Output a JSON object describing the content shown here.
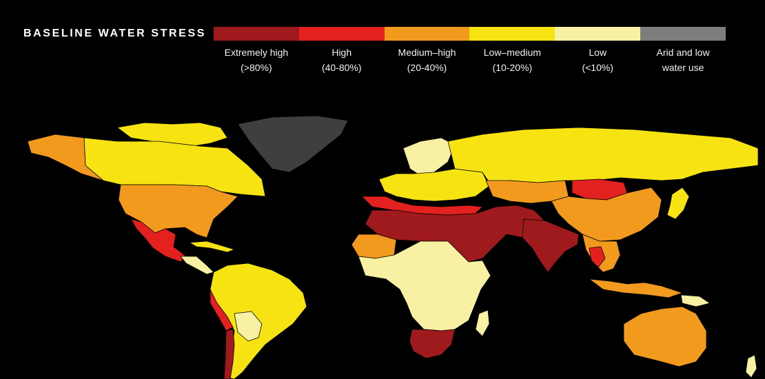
{
  "title": "BASELINE WATER STRESS",
  "legend": [
    {
      "line1": "Extremely high",
      "line2": "(>80%)",
      "color": "#9e1a1c"
    },
    {
      "line1": "High",
      "line2": "(40-80%)",
      "color": "#e3221f"
    },
    {
      "line1": "Medium–high",
      "line2": "(20-40%)",
      "color": "#f29a1e"
    },
    {
      "line1": "Low–medium",
      "line2": "(10-20%)",
      "color": "#f7e312"
    },
    {
      "line1": "Low",
      "line2": "(<10%)",
      "color": "#f8f0a3"
    },
    {
      "line1": "Arid and low",
      "line2": "water use",
      "color": "#7d7d7d"
    }
  ]
}
